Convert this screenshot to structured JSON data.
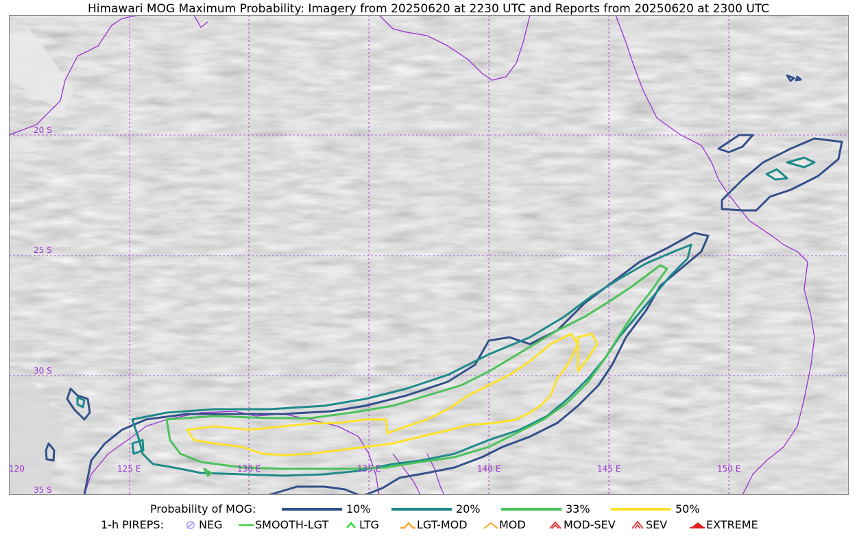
{
  "title": "Himawari MOG Maximum Probability: Imagery from 20250620 at 2230 UTC and Reports from 20250620 at 2300 UTC",
  "map": {
    "latitude_labels": [
      "20 S",
      "25 S",
      "30 S",
      "35 S"
    ],
    "longitude_labels": [
      "125 E",
      "130 E",
      "135 E",
      "140 E",
      "145 E",
      "150 E"
    ],
    "edge_label": "120",
    "colors": {
      "coast": "#9a30d0",
      "grid": "#9a30d0",
      "p10": "#33508a",
      "p20": "#1f8a8a",
      "p33": "#4cc25a",
      "p50": "#fde12a"
    }
  },
  "legend": {
    "probability_label": "Probability of MOG:",
    "probability_levels": [
      {
        "label": "10%",
        "color": "#33508a"
      },
      {
        "label": "20%",
        "color": "#1f8a8a"
      },
      {
        "label": "33%",
        "color": "#4cc25a"
      },
      {
        "label": "50%",
        "color": "#fde12a"
      }
    ],
    "pireps_label": "1-h PIREPS:",
    "pireps": [
      {
        "label": "NEG",
        "icon": "neg-icon",
        "color": "#b0b0ff"
      },
      {
        "label": "SMOOTH-LGT",
        "icon": "line-icon",
        "color": "#33cc33"
      },
      {
        "label": "LTG",
        "icon": "chevron-icon",
        "color": "#22dd22"
      },
      {
        "label": "LGT-MOD",
        "icon": "hat-icon",
        "color": "#f5a623"
      },
      {
        "label": "MOD",
        "icon": "chevron-icon",
        "color": "#f5a623"
      },
      {
        "label": "MOD-SEV",
        "icon": "double-hat-icon",
        "color": "#e53030"
      },
      {
        "label": "SEV",
        "icon": "double-chevron-icon",
        "color": "#e53030"
      },
      {
        "label": "EXTREME",
        "icon": "filled-hat-icon",
        "color": "#e02020"
      }
    ]
  }
}
